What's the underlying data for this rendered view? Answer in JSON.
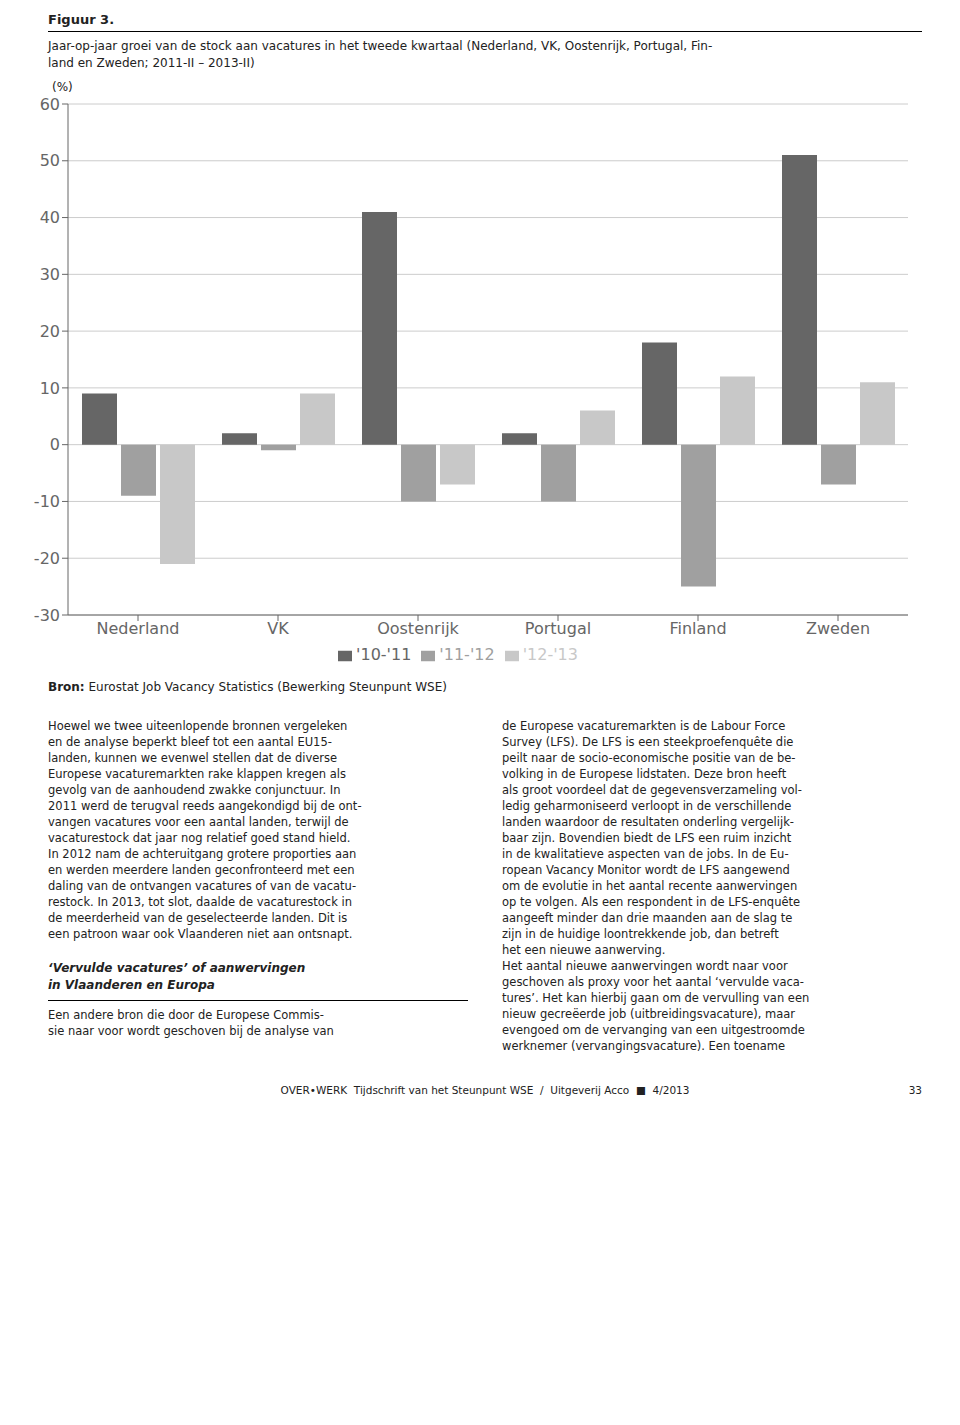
{
  "chart_data": {
    "type": "bar",
    "subtitle": "Figuur 3.",
    "title": "Jaar-op-jaar groei van de stock aan vacatures in het tweede kwartaal (Nederland, VK, Oostenrijk, Portugal, Fin-\nland en Zweden; 2011-II – 2013-II)",
    "ylabel": "(%)",
    "categories": [
      "Nederland",
      "VK",
      "Oostenrijk",
      "Portugal",
      "Finland",
      "Zweden"
    ],
    "series": [
      {
        "name": "'10-'11",
        "color": "#666666",
        "values": [
          9,
          2,
          41,
          2,
          18,
          51
        ]
      },
      {
        "name": "'11-'12",
        "color": "#a0a0a0",
        "values": [
          -9,
          -1,
          -10,
          -10,
          -25,
          -7
        ]
      },
      {
        "name": "'12-'13",
        "color": "#c8c8c8",
        "values": [
          -21,
          9,
          -7,
          6,
          12,
          11
        ]
      }
    ],
    "ylim": [
      -30,
      60
    ],
    "yticks": [
      -30,
      -20,
      -10,
      0,
      10,
      20,
      30,
      40,
      50,
      60
    ],
    "grid": true,
    "legend": "bottom",
    "annotations": [
      "Bron:",
      "Eurostat Job Vacancy Statistics (Bewerking Steunpunt WSE)",
      "Hoewel we twee uiteenlopende bronnen vergeleken\nen de analyse beperkt bleef tot een aantal EU15-\nlanden, kunnen we evenwel stellen dat de diverse\nEuropese vacaturemarkten rake klappen kregen als\ngevolg van de aanhoudend zwakke conjunctuur. In\n2011 werd de terugval reeds aangekondigd bij de ont-\nvangen vacatures voor een aantal landen, terwijl de\nvacaturestock dat jaar nog relatief goed stand hield.\nIn 2012 nam de achteruitgang grotere proporties aan\nen werden meerdere landen geconfronteerd met een\ndaling van de ontvangen vacatures of van de vacatu-\nrestock. In 2013, tot slot, daalde de vacaturestock in\nde meerderheid van de geselecteerde landen. Dit is\neen patroon waar ook Vlaanderen niet aan ontsnapt.",
      "‘Vervulde vacatures’ of aanwervingen\nin Vlaanderen en Europa",
      "Een andere bron die door de Europese Commis-\nsie naar voor wordt geschoven bij de analyse van",
      "de Europese vacaturemarkten is de Labour Force\nSurvey (LFS). De LFS is een steekproefenquête die\npeilt naar de socio-economische positie van de be-\nvolking in de Europese lidstaten. Deze bron heeft\nals groot voordeel dat de gegevensverzameling vol-\nledig geharmoniseerd verloopt in de verschillende\nlanden waardoor de resultaten onderling vergelijk-\nbaar zijn. Bovendien biedt de LFS een ruim inzicht\nin de kwalitatieve aspecten van de jobs. In de Eu-\nropean Vacancy Monitor wordt de LFS aangewend\nom de evolutie in het aantal recente aanwervingen\nop te volgen. Als een respondent in de LFS-enquête\naangeeft minder dan drie maanden aan de slag te\nzijn in de huidige loontrekkende job, dan betreft\nhet een nieuwe aanwerving.\nHet aantal nieuwe aanwervingen wordt naar voor\ngeschoven als proxy voor het aantal ‘vervulde vaca-\ntures’. Het kan hierbij gaan om de vervulling van een\nnieuw gecreëerde job (uitbreidingsvacature), maar\nevengoed om de vervanging van een uitgestroomde\nwerknemer (vervangingsvacature). Een toename",
      "OVER•WERK  Tijdschrift van het Steunpunt WSE  /  Uitgeverij Acco  ■  4/2013",
      "33"
    ]
  }
}
